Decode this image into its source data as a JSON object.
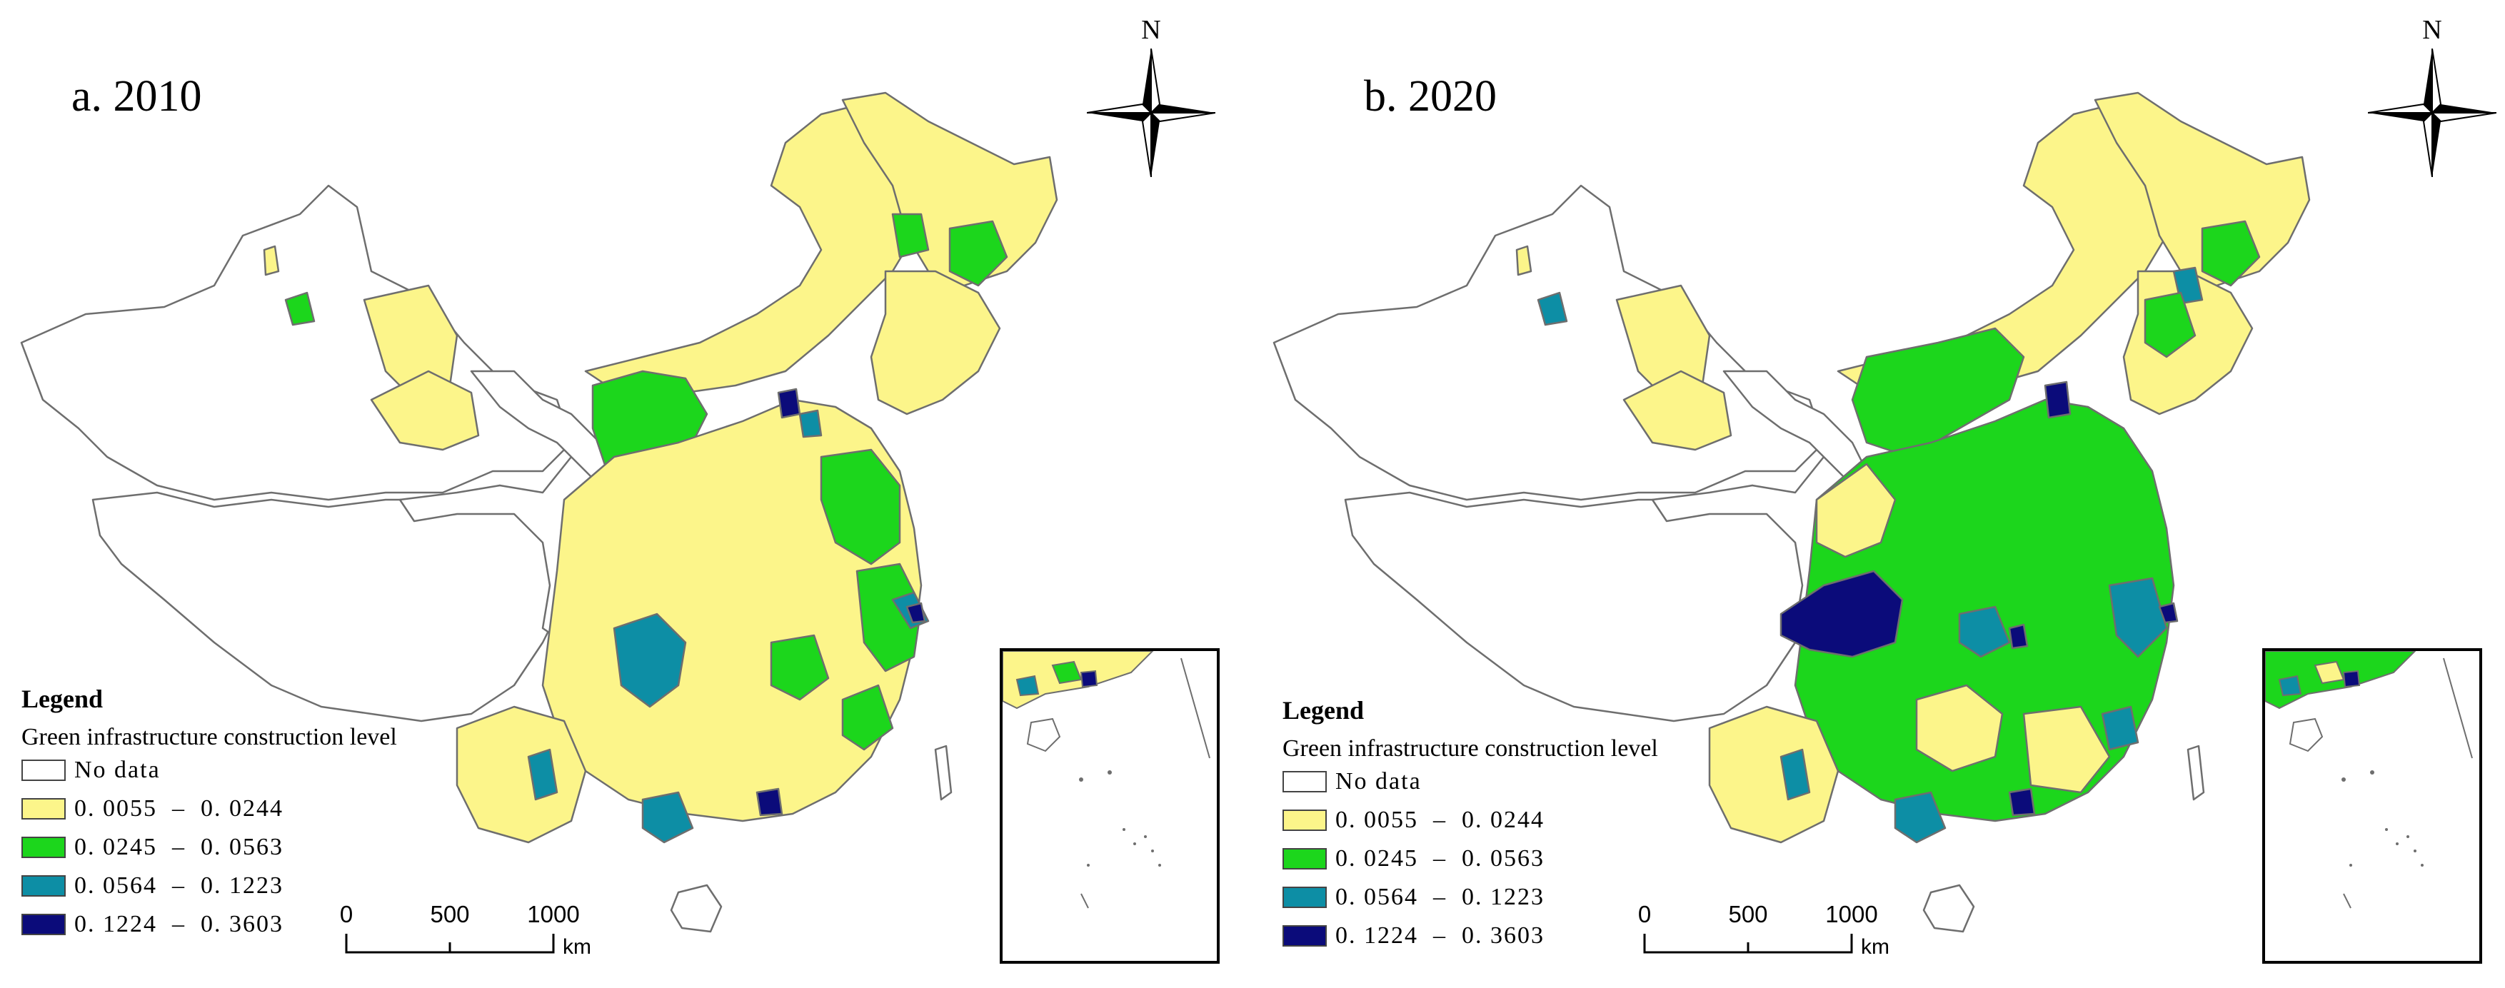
{
  "colors": {
    "no_data": "#ffffff",
    "class1": "#fcf58a",
    "class2": "#1cd61c",
    "class3": "#0d8ea5",
    "class4": "#0b0b7a",
    "boundary": "#6e6e6e"
  },
  "panels": [
    {
      "title": "a. 2010",
      "north_label": "N",
      "legend": {
        "title": "Legend",
        "subtitle": "Green infrastructure construction level",
        "items": [
          {
            "label": "No data",
            "color": "#ffffff"
          },
          {
            "label": "0. 0055  –  0. 0244",
            "color": "#fcf58a"
          },
          {
            "label": "0. 0245  –  0. 0563",
            "color": "#1cd61c"
          },
          {
            "label": "0. 0564  –  0. 1223",
            "color": "#0d8ea5"
          },
          {
            "label": "0. 1224  –  0. 3603",
            "color": "#0b0b7a"
          }
        ]
      },
      "scale_bar": {
        "ticks": [
          "0",
          "500",
          "1000"
        ],
        "unit": "km"
      }
    },
    {
      "title": "b. 2020",
      "north_label": "N",
      "legend": {
        "title": "Legend",
        "subtitle": "Green infrastructure construction level",
        "items": [
          {
            "label": "No data",
            "color": "#ffffff"
          },
          {
            "label": "0. 0055  –  0. 0244",
            "color": "#fcf58a"
          },
          {
            "label": "0. 0245  –  0. 0563",
            "color": "#1cd61c"
          },
          {
            "label": "0. 0564  –  0. 1223",
            "color": "#0d8ea5"
          },
          {
            "label": "0. 1224  –  0. 3603",
            "color": "#0b0b7a"
          }
        ]
      },
      "scale_bar": {
        "ticks": [
          "0",
          "500",
          "1000"
        ],
        "unit": "km"
      }
    }
  ]
}
